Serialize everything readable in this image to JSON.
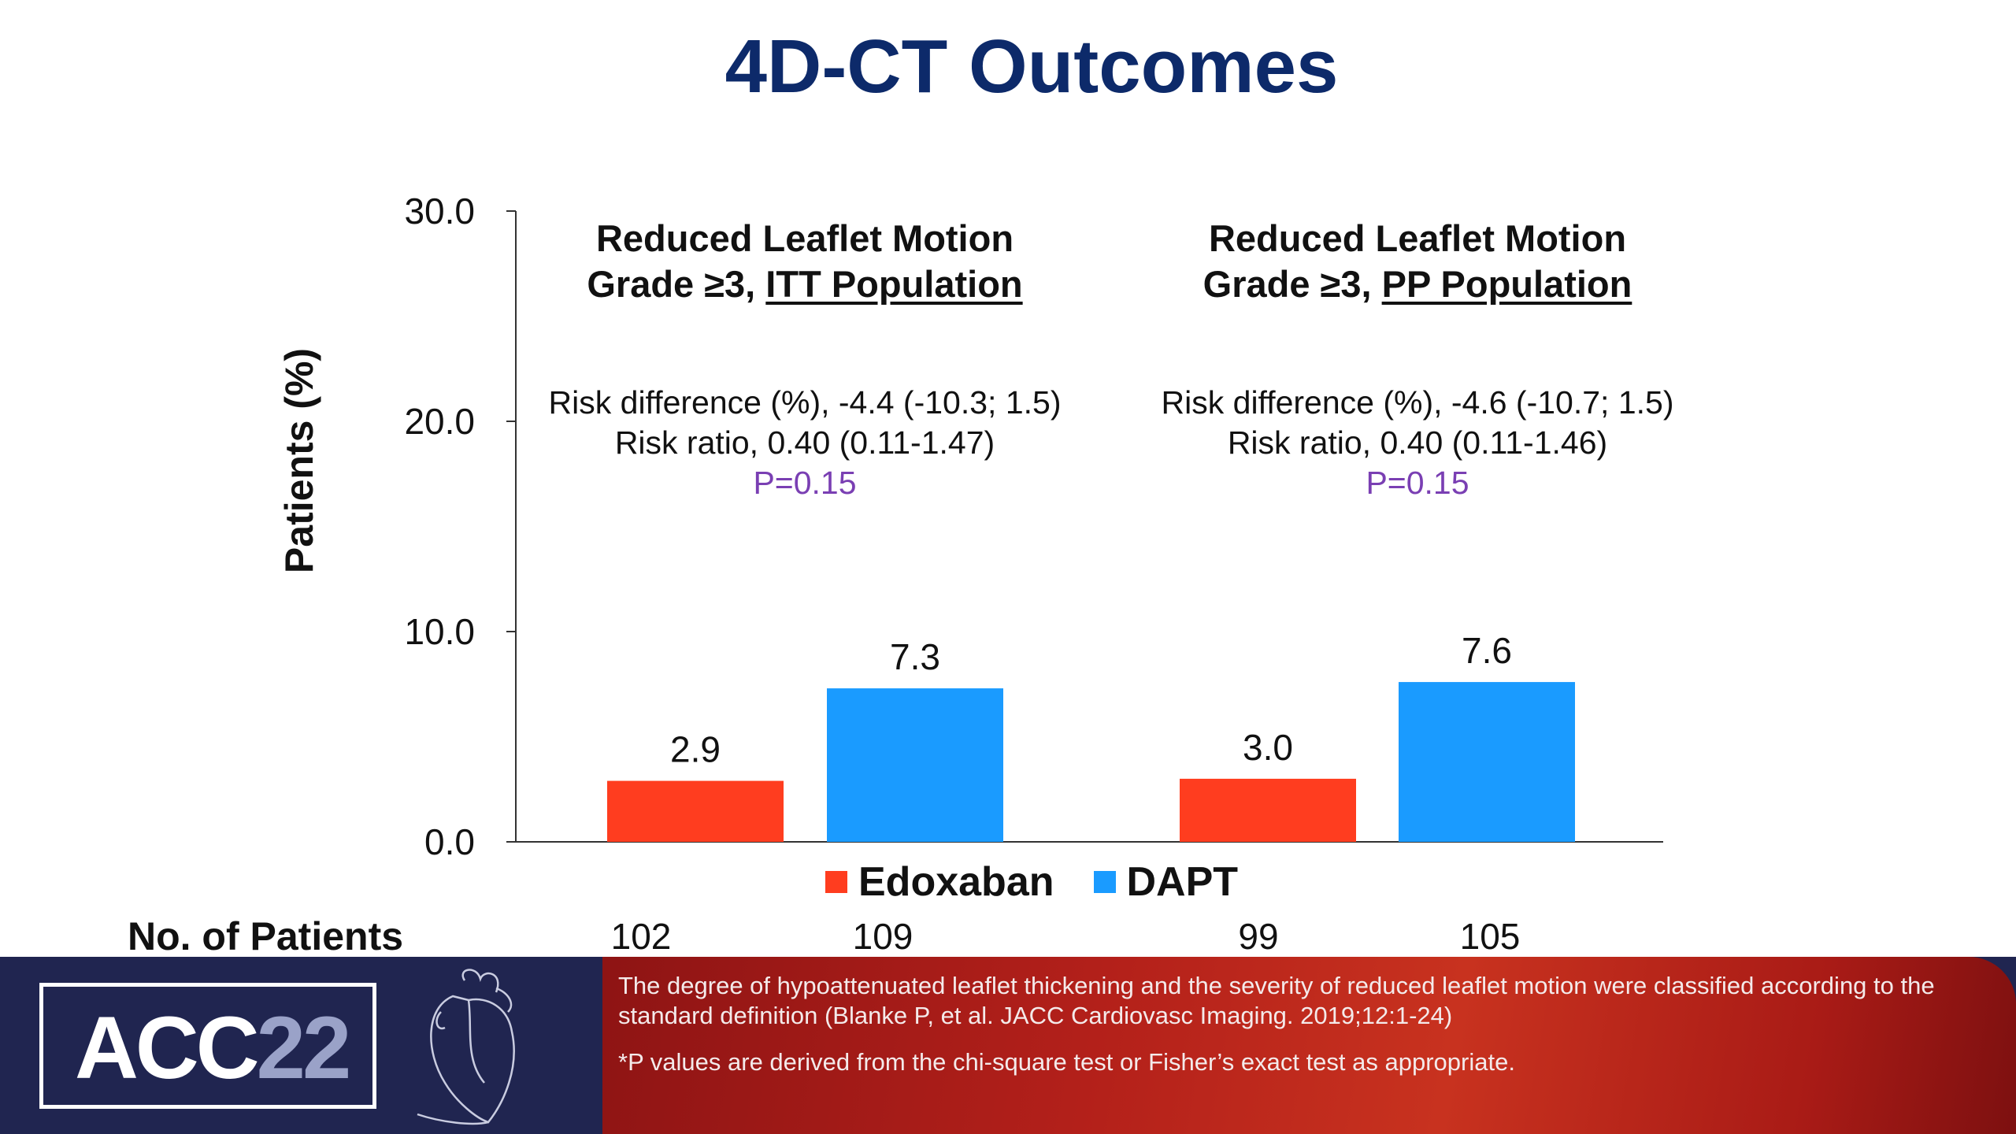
{
  "title": "4D-CT Outcomes",
  "chart_data": {
    "type": "bar",
    "ylabel": "Patients  (%)",
    "ylim": [
      0,
      30
    ],
    "yticks": [
      "0.0",
      "10.0",
      "20.0",
      "30.0"
    ],
    "grid": false,
    "legend_position": "bottom",
    "groups": [
      {
        "title_line1": "Reduced  Leaflet  Motion",
        "title_line2_prefix": "Grade ≥3, ",
        "title_line2_underlined": "ITT Population",
        "risk_difference": "Risk difference (%), -4.4 (-10.3; 1.5)",
        "risk_ratio": "Risk ratio, 0.40 (0.11-1.47)",
        "p_value": "P=0.15"
      },
      {
        "title_line1": "Reduced  Leaflet  Motion",
        "title_line2_prefix": "Grade ≥3, ",
        "title_line2_underlined": "PP Population",
        "risk_difference": "Risk difference (%), -4.6 (-10.7; 1.5)",
        "risk_ratio": "Risk ratio, 0.40 (0.11-1.46)",
        "p_value": "P=0.15"
      }
    ],
    "series": [
      {
        "name": "Edoxaban",
        "color": "#ff3d1f",
        "values": [
          2.9,
          3.0
        ],
        "labels": [
          "2.9",
          "3.0"
        ]
      },
      {
        "name": "DAPT",
        "color": "#1a9bff",
        "values": [
          7.3,
          7.6
        ],
        "labels": [
          "7.3",
          "7.6"
        ]
      }
    ],
    "patients_label": "No. of Patients",
    "patients": [
      "102",
      "109",
      "99",
      "105"
    ]
  },
  "footer": {
    "logo_text": "ACC",
    "logo_year": "22",
    "logo_icon": "heart-icon",
    "note1": "The degree of hypoattenuated leaflet thickening and the severity of reduced leaflet motion were classified according to the standard definition (Blanke P, et al. JACC Cardiovasc Imaging. 2019;12:1-24)",
    "note2": "*P values are derived from the chi-square test or Fisher’s exact test as appropriate."
  }
}
